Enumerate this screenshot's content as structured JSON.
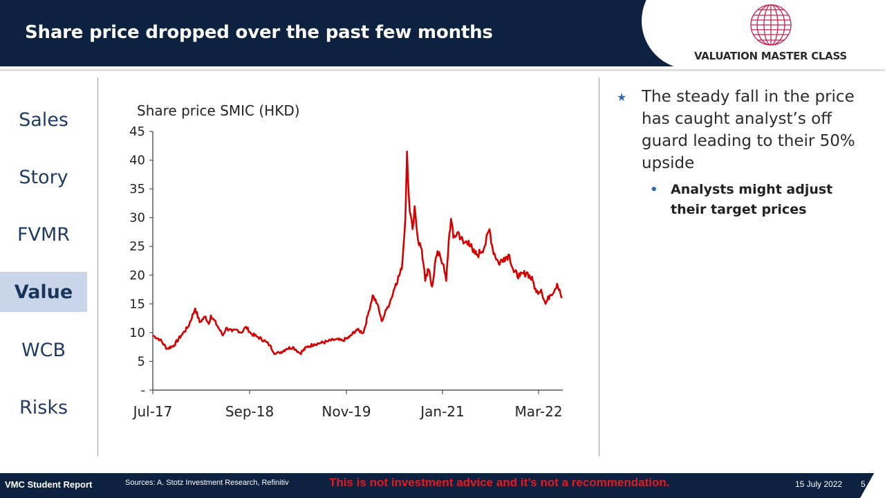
{
  "header": {
    "title": "Share price dropped over the past few months",
    "logo_text": "VALUATION MASTER CLASS",
    "logo_icon": "globe-icon",
    "logo_color": "#c8204c"
  },
  "nav": {
    "items": [
      {
        "label": "Sales",
        "active": false
      },
      {
        "label": "Story",
        "active": false
      },
      {
        "label": "FVMR",
        "active": false
      },
      {
        "label": "Value",
        "active": true
      },
      {
        "label": "WCB",
        "active": false
      },
      {
        "label": "Risks",
        "active": false
      }
    ]
  },
  "chart_data": {
    "type": "line",
    "title": "Share price SMIC (HKD)",
    "xlabel": "",
    "ylabel": "",
    "x_tick_labels": [
      "Jul-17",
      "Sep-18",
      "Nov-19",
      "Jan-21",
      "Mar-22"
    ],
    "y_ticks": [
      0,
      5,
      10,
      15,
      20,
      25,
      30,
      35,
      40,
      45
    ],
    "y_tick_labels": [
      "-",
      "5",
      "10",
      "15",
      "20",
      "25",
      "30",
      "35",
      "40",
      "45"
    ],
    "ylim": [
      0,
      45
    ],
    "xlim": [
      "2017-07-01",
      "2022-05-15"
    ],
    "grid": false,
    "legend": "none",
    "line_color": "#d40000",
    "series": [
      {
        "values": [
          [
            "2017-07-01",
            9.5
          ],
          [
            "2017-08-01",
            8.8
          ],
          [
            "2017-09-01",
            7.2
          ],
          [
            "2017-10-01",
            7.8
          ],
          [
            "2017-11-01",
            9.5
          ],
          [
            "2017-12-01",
            11.0
          ],
          [
            "2018-01-01",
            14.2
          ],
          [
            "2018-01-20",
            11.8
          ],
          [
            "2018-02-15",
            12.8
          ],
          [
            "2018-03-01",
            11.5
          ],
          [
            "2018-03-10",
            13.0
          ],
          [
            "2018-04-10",
            11.0
          ],
          [
            "2018-05-01",
            9.5
          ],
          [
            "2018-05-15",
            10.8
          ],
          [
            "2018-06-10",
            10.2
          ],
          [
            "2018-07-01",
            10.5
          ],
          [
            "2018-07-20",
            10.0
          ],
          [
            "2018-08-10",
            11.0
          ],
          [
            "2018-09-01",
            9.8
          ],
          [
            "2018-10-01",
            9.2
          ],
          [
            "2018-11-01",
            8.5
          ],
          [
            "2018-11-20",
            7.8
          ],
          [
            "2018-12-15",
            6.3
          ],
          [
            "2019-01-01",
            6.5
          ],
          [
            "2019-02-01",
            7.2
          ],
          [
            "2019-03-01",
            7.5
          ],
          [
            "2019-03-15",
            7.0
          ],
          [
            "2019-04-01",
            6.4
          ],
          [
            "2019-05-01",
            7.5
          ],
          [
            "2019-06-01",
            8.0
          ],
          [
            "2019-07-01",
            8.2
          ],
          [
            "2019-08-01",
            8.5
          ],
          [
            "2019-09-01",
            8.8
          ],
          [
            "2019-10-01",
            8.6
          ],
          [
            "2019-11-01",
            9.2
          ],
          [
            "2019-12-01",
            10.5
          ],
          [
            "2020-01-01",
            10.0
          ],
          [
            "2020-01-20",
            13.0
          ],
          [
            "2020-02-10",
            16.5
          ],
          [
            "2020-03-01",
            15.0
          ],
          [
            "2020-03-20",
            12.0
          ],
          [
            "2020-04-10",
            14.0
          ],
          [
            "2020-05-01",
            16.0
          ],
          [
            "2020-05-20",
            18.5
          ],
          [
            "2020-06-15",
            21.0
          ],
          [
            "2020-07-01",
            30.0
          ],
          [
            "2020-07-08",
            41.5
          ],
          [
            "2020-07-20",
            31.0
          ],
          [
            "2020-08-01",
            28.0
          ],
          [
            "2020-08-10",
            32.0
          ],
          [
            "2020-08-25",
            26.0
          ],
          [
            "2020-09-10",
            24.5
          ],
          [
            "2020-09-25",
            19.0
          ],
          [
            "2020-10-10",
            21.0
          ],
          [
            "2020-10-25",
            18.0
          ],
          [
            "2020-11-10",
            23.0
          ],
          [
            "2020-11-25",
            24.0
          ],
          [
            "2020-12-10",
            22.0
          ],
          [
            "2020-12-25",
            19.0
          ],
          [
            "2021-01-05",
            26.0
          ],
          [
            "2021-01-15",
            29.8
          ],
          [
            "2021-01-25",
            26.5
          ],
          [
            "2021-02-15",
            27.5
          ],
          [
            "2021-03-10",
            25.5
          ],
          [
            "2021-04-01",
            26.0
          ],
          [
            "2021-04-20",
            24.0
          ],
          [
            "2021-05-10",
            23.5
          ],
          [
            "2021-06-10",
            25.0
          ],
          [
            "2021-07-01",
            28.0
          ],
          [
            "2021-07-15",
            24.5
          ],
          [
            "2021-08-10",
            22.0
          ],
          [
            "2021-09-01",
            23.0
          ],
          [
            "2021-09-25",
            23.5
          ],
          [
            "2021-10-15",
            20.5
          ],
          [
            "2021-11-10",
            19.8
          ],
          [
            "2021-12-10",
            20.5
          ],
          [
            "2022-01-05",
            19.0
          ],
          [
            "2022-01-20",
            17.0
          ],
          [
            "2022-02-10",
            17.5
          ],
          [
            "2022-03-01",
            15.0
          ],
          [
            "2022-03-20",
            16.5
          ],
          [
            "2022-04-10",
            17.5
          ],
          [
            "2022-04-20",
            18.5
          ],
          [
            "2022-05-01",
            17.5
          ],
          [
            "2022-05-10",
            16.0
          ]
        ]
      }
    ]
  },
  "bullets": {
    "main": "The steady fall in the price has caught analyst’s off guard leading to their 50% upside",
    "main_icon": "star-icon",
    "sub": "Analysts might adjust their target prices",
    "sub_icon": "dot-icon"
  },
  "footer": {
    "report": "VMC Student Report",
    "sources": "Sources: A. Stotz Investment Research, Refinitiv",
    "disclaimer": "This is not investment advice and it’s not a recommendation.",
    "date": "15 July 2022",
    "page": "5"
  }
}
